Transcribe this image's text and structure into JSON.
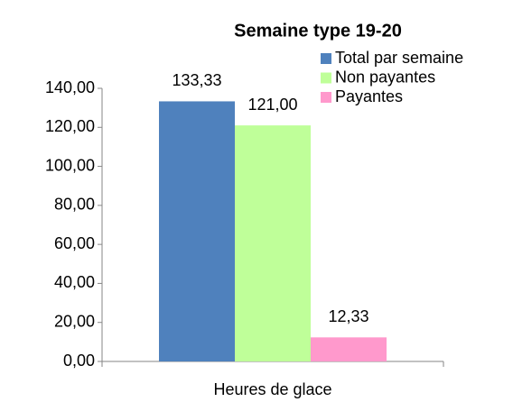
{
  "chart_data": {
    "type": "bar",
    "title": "Semaine type 19-20",
    "categories": [
      "Heures de glace"
    ],
    "series": [
      {
        "name": "Total par semaine",
        "color": "#4f81bd",
        "values": [
          133.33
        ],
        "value_labels": [
          "133,33"
        ]
      },
      {
        "name": "Non payantes",
        "color": "#bfff99",
        "values": [
          121
        ],
        "value_labels": [
          "121,00"
        ]
      },
      {
        "name": "Payantes",
        "color": "#ff99cc",
        "values": [
          12.33
        ],
        "value_labels": [
          "12,33"
        ]
      }
    ],
    "ylim": [
      0,
      140
    ],
    "yticks": [
      {
        "value": 0,
        "label": "0,00"
      },
      {
        "value": 20,
        "label": "20,00"
      },
      {
        "value": 40,
        "label": "40,00"
      },
      {
        "value": 60,
        "label": "60,00"
      },
      {
        "value": 80,
        "label": "80,00"
      },
      {
        "value": 100,
        "label": "100,00"
      },
      {
        "value": 120,
        "label": "120,00"
      },
      {
        "value": 140,
        "label": "140,00"
      }
    ],
    "legend": "top-right",
    "grid": false
  }
}
